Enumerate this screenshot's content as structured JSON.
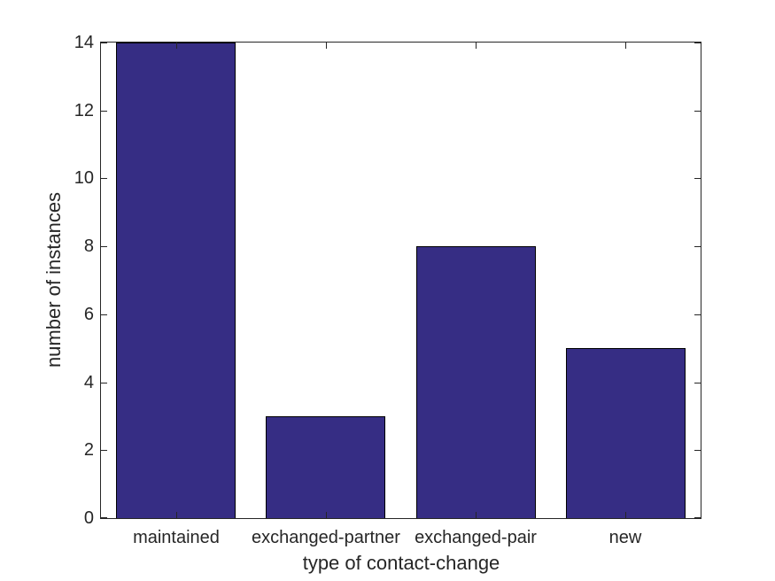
{
  "figure": {
    "background": "#ffffff",
    "axis_color": "#262626",
    "text_color": "#262626"
  },
  "chart_data": {
    "type": "bar",
    "categories": [
      "maintained",
      "exchanged-partner",
      "exchanged-pair",
      "new"
    ],
    "values": [
      14,
      3,
      8,
      5
    ],
    "title": "",
    "xlabel": "type of contact-change",
    "ylabel": "number of instances",
    "ylim": [
      0,
      14
    ],
    "yticks": [
      0,
      2,
      4,
      6,
      8,
      10,
      12,
      14
    ],
    "bar_width_fraction": 0.8,
    "bar_color": "#362D84",
    "bar_edge_color": "#000000",
    "grid": false,
    "legend": null,
    "box": true
  }
}
